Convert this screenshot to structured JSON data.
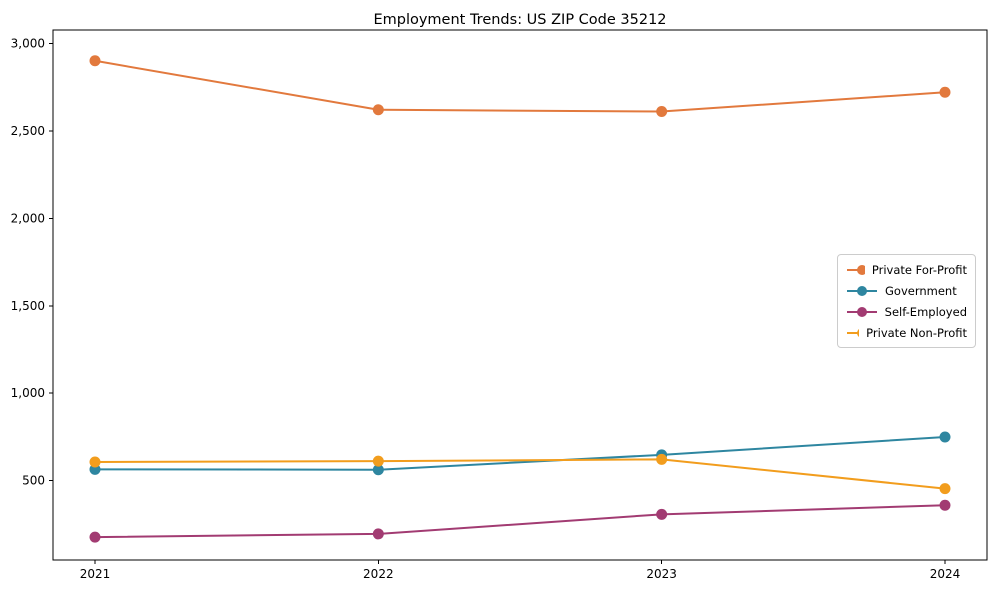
{
  "title": "Employment Trends: US ZIP Code 35212",
  "chart_data": {
    "type": "line",
    "title": "Employment Trends: US ZIP Code 35212",
    "xlabel": "",
    "ylabel": "",
    "x": [
      "2021",
      "2022",
      "2023",
      "2024"
    ],
    "series": [
      {
        "name": "Private For-Profit",
        "color": "#e2793d",
        "values": [
          2900,
          2620,
          2610,
          2720
        ]
      },
      {
        "name": "Government",
        "color": "#2e86a0",
        "values": [
          565,
          563,
          648,
          750
        ]
      },
      {
        "name": "Self-Employed",
        "color": "#a23b72",
        "values": [
          178,
          196,
          308,
          360
        ]
      },
      {
        "name": "Private Non-Profit",
        "color": "#f29d1d",
        "values": [
          607,
          612,
          622,
          455
        ]
      }
    ],
    "yticks": [
      500,
      1000,
      1500,
      2000,
      2500,
      3000
    ],
    "ytick_labels": [
      "500",
      "1,000",
      "1,500",
      "2,000",
      "2,500",
      "3,000"
    ],
    "ylim": [
      47,
      3076
    ],
    "grid": false,
    "marker": "circle",
    "legend_position": "center-right",
    "axis_color": "#000000",
    "background_color": "#ffffff"
  }
}
